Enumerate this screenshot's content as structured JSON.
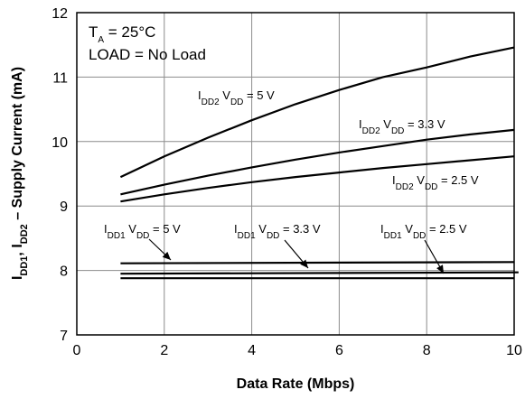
{
  "chart_data": {
    "type": "line",
    "xlabel": "Data Rate (Mbps)",
    "ylabel": {
      "p1": "I",
      "s1": "DD1",
      "p2": ", I",
      "s2": "DD2",
      "p3": " – Supply Current (mA)"
    },
    "xlim": [
      0,
      10
    ],
    "ylim": [
      7,
      12
    ],
    "xticks": [
      "0",
      "2",
      "4",
      "6",
      "8",
      "10"
    ],
    "yticks": [
      "7",
      "8",
      "9",
      "10",
      "11",
      "12"
    ],
    "grid": true,
    "conditions": {
      "ta_main": "T",
      "ta_sub": "A",
      "ta_rest": " = 25°C",
      "load": "LOAD = No Load"
    },
    "series": [
      {
        "name": "IDD2 VDD = 5 V",
        "label": {
          "i": "I",
          "isub": "DD2",
          "v": " V",
          "vsub": "DD",
          "rest": " = 5 V"
        },
        "x": [
          1,
          2,
          3,
          4,
          5,
          6,
          7,
          8,
          9,
          10
        ],
        "y": [
          9.45,
          9.77,
          10.06,
          10.33,
          10.58,
          10.8,
          11.0,
          11.15,
          11.32,
          11.46
        ]
      },
      {
        "name": "IDD2 VDD = 3.3 V",
        "label": {
          "i": "I",
          "isub": "DD2",
          "v": " V",
          "vsub": "DD",
          "rest": " = 3.3 V"
        },
        "x": [
          1,
          2,
          3,
          4,
          5,
          6,
          7,
          8,
          9,
          10
        ],
        "y": [
          9.18,
          9.33,
          9.47,
          9.6,
          9.72,
          9.83,
          9.93,
          10.03,
          10.11,
          10.18
        ]
      },
      {
        "name": "IDD2 VDD = 2.5 V",
        "label": {
          "i": "I",
          "isub": "DD2",
          "v": " V",
          "vsub": "DD",
          "rest": " = 2.5 V"
        },
        "x": [
          1,
          2,
          3,
          4,
          5,
          6,
          7,
          8,
          9,
          10
        ],
        "y": [
          9.07,
          9.18,
          9.28,
          9.37,
          9.45,
          9.52,
          9.59,
          9.65,
          9.71,
          9.77
        ]
      },
      {
        "name": "IDD1 VDD = 5 V",
        "label": {
          "i": "I",
          "isub": "DD1",
          "v": " V",
          "vsub": "DD",
          "rest": " = 5 V"
        },
        "x": [
          1,
          10
        ],
        "y": [
          8.11,
          8.13
        ]
      },
      {
        "name": "IDD1 VDD = 3.3 V",
        "label": {
          "i": "I",
          "isub": "DD1",
          "v": " V",
          "vsub": "DD",
          "rest": " = 3.3 V"
        },
        "x": [
          1,
          10.1
        ],
        "y": [
          7.95,
          7.97
        ]
      },
      {
        "name": "IDD1 VDD = 2.5 V",
        "label": {
          "i": "I",
          "isub": "DD1",
          "v": " V",
          "vsub": "DD",
          "rest": " = 2.5 V"
        },
        "x": [
          1,
          10
        ],
        "y": [
          7.88,
          7.88
        ]
      }
    ]
  }
}
